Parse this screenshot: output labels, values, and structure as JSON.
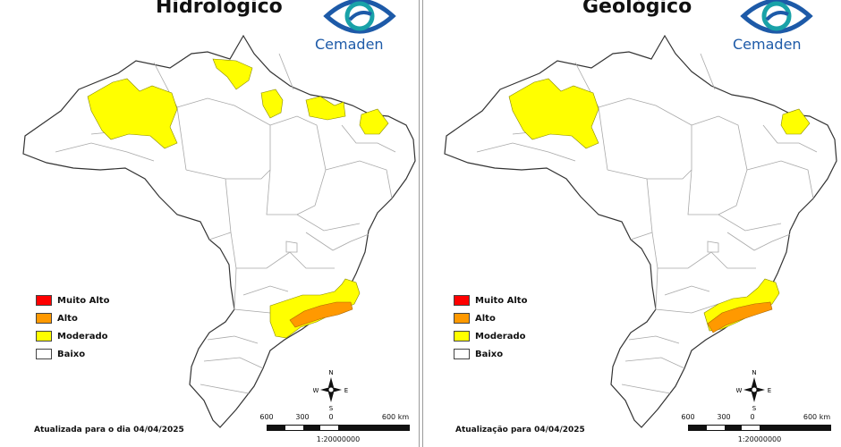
{
  "panels": [
    {
      "title": "Hidrológico",
      "logo_text": "Cemaden",
      "legend": [
        {
          "label": "Muito Alto",
          "color": "#ff0000"
        },
        {
          "label": "Alto",
          "color": "#ff9900"
        },
        {
          "label": "Moderado",
          "color": "#ffff00"
        },
        {
          "label": "Baixo",
          "color": "#ffffff"
        }
      ],
      "updated_text": "Atualizada para o dia 04/04/2025",
      "scale": {
        "labels": [
          "600",
          "300",
          "0",
          "600 km"
        ],
        "ratio": "1:20000000"
      },
      "compass": {
        "n": "N",
        "s": "S",
        "e": "E",
        "w": "W"
      }
    },
    {
      "title": "Geológico",
      "logo_text": "Cemaden",
      "legend": [
        {
          "label": "Muito Alto",
          "color": "#ff0000"
        },
        {
          "label": "Alto",
          "color": "#ff9900"
        },
        {
          "label": "Moderado",
          "color": "#ffff00"
        },
        {
          "label": "Baixo",
          "color": "#ffffff"
        }
      ],
      "updated_text": "Atualização para 04/04/2025",
      "scale": {
        "labels": [
          "600",
          "300",
          "0",
          "600 km"
        ],
        "ratio": "1:20000000"
      },
      "compass": {
        "n": "N",
        "s": "S",
        "e": "E",
        "w": "W"
      }
    }
  ],
  "colors": {
    "muito_alto": "#ff0000",
    "alto": "#ff9900",
    "moderado": "#ffff00",
    "baixo": "#ffffff",
    "border": "#333333",
    "internal_border": "#a8a8a8",
    "logo_blue": "#1d5aa8",
    "logo_teal": "#19a2a8"
  },
  "icons": [
    "cemaden-logo-icon",
    "compass-rose-icon"
  ]
}
